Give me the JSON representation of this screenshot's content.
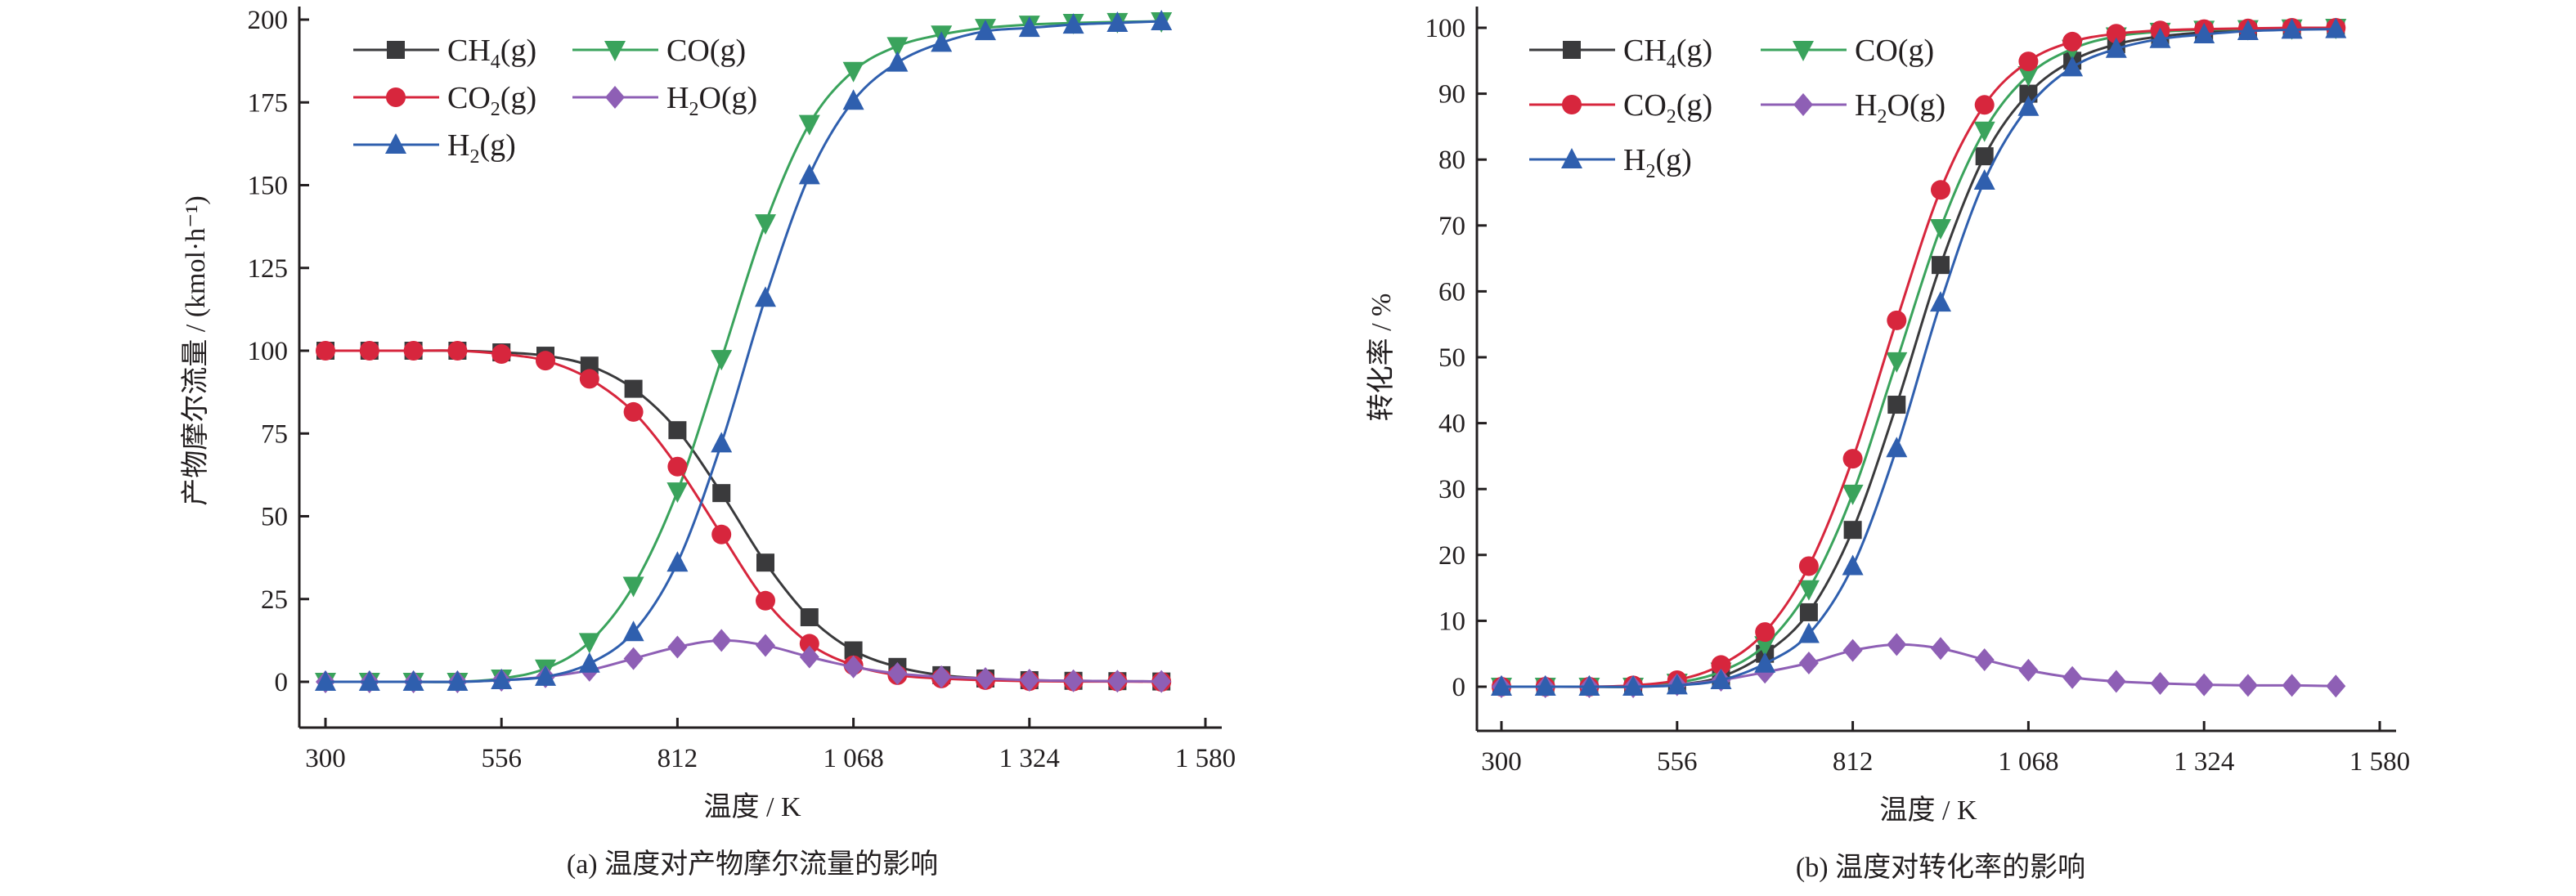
{
  "chart_data": [
    {
      "type": "line",
      "caption": "(a) 温度对产物摩尔流量的影响",
      "xlabel": "温度 / K",
      "ylabel": "产物摩尔流量 / (kmol·h⁻¹)",
      "xlim": [
        300,
        1580
      ],
      "ylim": [
        0,
        200
      ],
      "xticks": [
        300,
        556,
        812,
        1068,
        1324,
        1580
      ],
      "xtick_labels": [
        "300",
        "556",
        "812",
        "1 068",
        "1 324",
        "1 580"
      ],
      "yticks": [
        0,
        25,
        50,
        75,
        100,
        125,
        150,
        175,
        200
      ],
      "ytick_labels": [
        "0",
        "25",
        "50",
        "75",
        "100",
        "125",
        "150",
        "175",
        "200"
      ],
      "legend_placement": "top-left",
      "x": [
        300,
        364,
        428,
        492,
        556,
        620,
        684,
        748,
        812,
        876,
        940,
        1004,
        1068,
        1132,
        1196,
        1260,
        1324,
        1388,
        1452,
        1516
      ],
      "series": [
        {
          "name": "CH4(g)",
          "label_main": "CH",
          "label_sub": "4",
          "label_tail": "(g)",
          "color": "#3a3a3c",
          "marker": "square",
          "values": [
            100,
            100,
            100,
            100,
            99.5,
            98.5,
            95.5,
            88.5,
            76,
            57,
            36,
            19.5,
            9.5,
            4.5,
            2,
            1,
            0.5,
            0.3,
            0.2,
            0.1
          ]
        },
        {
          "name": "CO(g)",
          "label_main": "CO",
          "label_sub": "",
          "label_tail": "(g)",
          "color": "#3aa35c",
          "marker": "triangle-down",
          "values": [
            0,
            0,
            0,
            0,
            1,
            4,
            12,
            29,
            57.5,
            97.5,
            138.5,
            168.5,
            184.5,
            192,
            195.5,
            197.5,
            198.5,
            199,
            199.3,
            199.5
          ]
        },
        {
          "name": "CO2(g)",
          "label_main": "CO",
          "label_sub": "2",
          "label_tail": "(g)",
          "color": "#d7263d",
          "marker": "circle",
          "values": [
            100,
            100,
            100,
            100,
            99,
            97,
            91.5,
            81.5,
            65,
            44.5,
            24.5,
            11.5,
            5,
            2,
            1,
            0.5,
            0.2,
            0.1,
            0.1,
            0
          ]
        },
        {
          "name": "H2O(g)",
          "label_main": "H",
          "label_sub": "2",
          "label_tail": "O(g)",
          "color": "#8e5fb5",
          "marker": "diamond",
          "values": [
            0,
            0,
            0,
            0,
            0.5,
            1.5,
            3.5,
            7,
            10.5,
            12.5,
            11,
            7.5,
            4.5,
            2.5,
            1.5,
            1,
            0.5,
            0.3,
            0.2,
            0.1
          ]
        },
        {
          "name": "H2(g)",
          "label_main": "H",
          "label_sub": "2",
          "label_tail": "(g)",
          "color": "#2f5fae",
          "marker": "triangle-up",
          "values": [
            0,
            0,
            0,
            0,
            0.5,
            1.5,
            5.5,
            15,
            36,
            72,
            116,
            153,
            175.5,
            187,
            193,
            196.5,
            197.5,
            198.5,
            199,
            199.5
          ]
        }
      ]
    },
    {
      "type": "line",
      "caption": "(b) 温度对转化率的影响",
      "xlabel": "温度 / K",
      "ylabel": "转化率 / %",
      "xlim": [
        300,
        1580
      ],
      "ylim": [
        0,
        100
      ],
      "xticks": [
        300,
        556,
        812,
        1068,
        1324,
        1580
      ],
      "xtick_labels": [
        "300",
        "556",
        "812",
        "1 068",
        "1 324",
        "1 580"
      ],
      "yticks": [
        0,
        10,
        20,
        30,
        40,
        50,
        60,
        70,
        80,
        90,
        100
      ],
      "ytick_labels": [
        "0",
        "10",
        "20",
        "30",
        "40",
        "50",
        "60",
        "70",
        "80",
        "90",
        "100"
      ],
      "legend_placement": "top-left",
      "x": [
        300,
        364,
        428,
        492,
        556,
        620,
        684,
        748,
        812,
        876,
        940,
        1004,
        1068,
        1132,
        1196,
        1260,
        1324,
        1388,
        1452,
        1516
      ],
      "series": [
        {
          "name": "CH4(g)",
          "label_main": "CH",
          "label_sub": "4",
          "label_tail": "(g)",
          "color": "#3a3a3c",
          "marker": "square",
          "values": [
            0,
            0,
            0,
            0,
            0.3,
            1.5,
            5,
            11.3,
            23.8,
            42.8,
            64,
            80.5,
            90,
            95,
            97.5,
            98.7,
            99.3,
            99.6,
            99.8,
            99.9
          ]
        },
        {
          "name": "CO(g)",
          "label_main": "CO",
          "label_sub": "",
          "label_tail": "(g)",
          "color": "#3aa35c",
          "marker": "triangle-down",
          "values": [
            0,
            0,
            0,
            0,
            0.6,
            2.3,
            6.3,
            14.8,
            29.3,
            49.4,
            69.6,
            84.4,
            92.8,
            96.8,
            98.7,
            99.4,
            99.7,
            99.8,
            99.9,
            100
          ]
        },
        {
          "name": "CO2(g)",
          "label_main": "CO",
          "label_sub": "2",
          "label_tail": "(g)",
          "color": "#d7263d",
          "marker": "circle",
          "values": [
            0,
            0,
            0,
            0.2,
            1,
            3.3,
            8.3,
            18.3,
            34.6,
            55.6,
            75.4,
            88.3,
            94.9,
            97.9,
            99.1,
            99.6,
            99.8,
            99.9,
            100,
            100
          ]
        },
        {
          "name": "H2O(g)",
          "label_main": "H",
          "label_sub": "2",
          "label_tail": "O(g)",
          "color": "#8e5fb5",
          "marker": "diamond",
          "values": [
            0,
            0,
            0,
            0,
            0.3,
            1,
            2.2,
            3.6,
            5.5,
            6.4,
            5.8,
            4.1,
            2.5,
            1.4,
            0.8,
            0.5,
            0.3,
            0.2,
            0.2,
            0.1
          ]
        },
        {
          "name": "H2(g)",
          "label_main": "H",
          "label_sub": "2",
          "label_tail": "(g)",
          "color": "#2f5fae",
          "marker": "triangle-up",
          "values": [
            0,
            0,
            0,
            0,
            0.2,
            1,
            3.5,
            8,
            18.3,
            36.2,
            58.3,
            76.8,
            88,
            94,
            96.8,
            98.3,
            99,
            99.5,
            99.7,
            99.8
          ]
        }
      ]
    }
  ]
}
